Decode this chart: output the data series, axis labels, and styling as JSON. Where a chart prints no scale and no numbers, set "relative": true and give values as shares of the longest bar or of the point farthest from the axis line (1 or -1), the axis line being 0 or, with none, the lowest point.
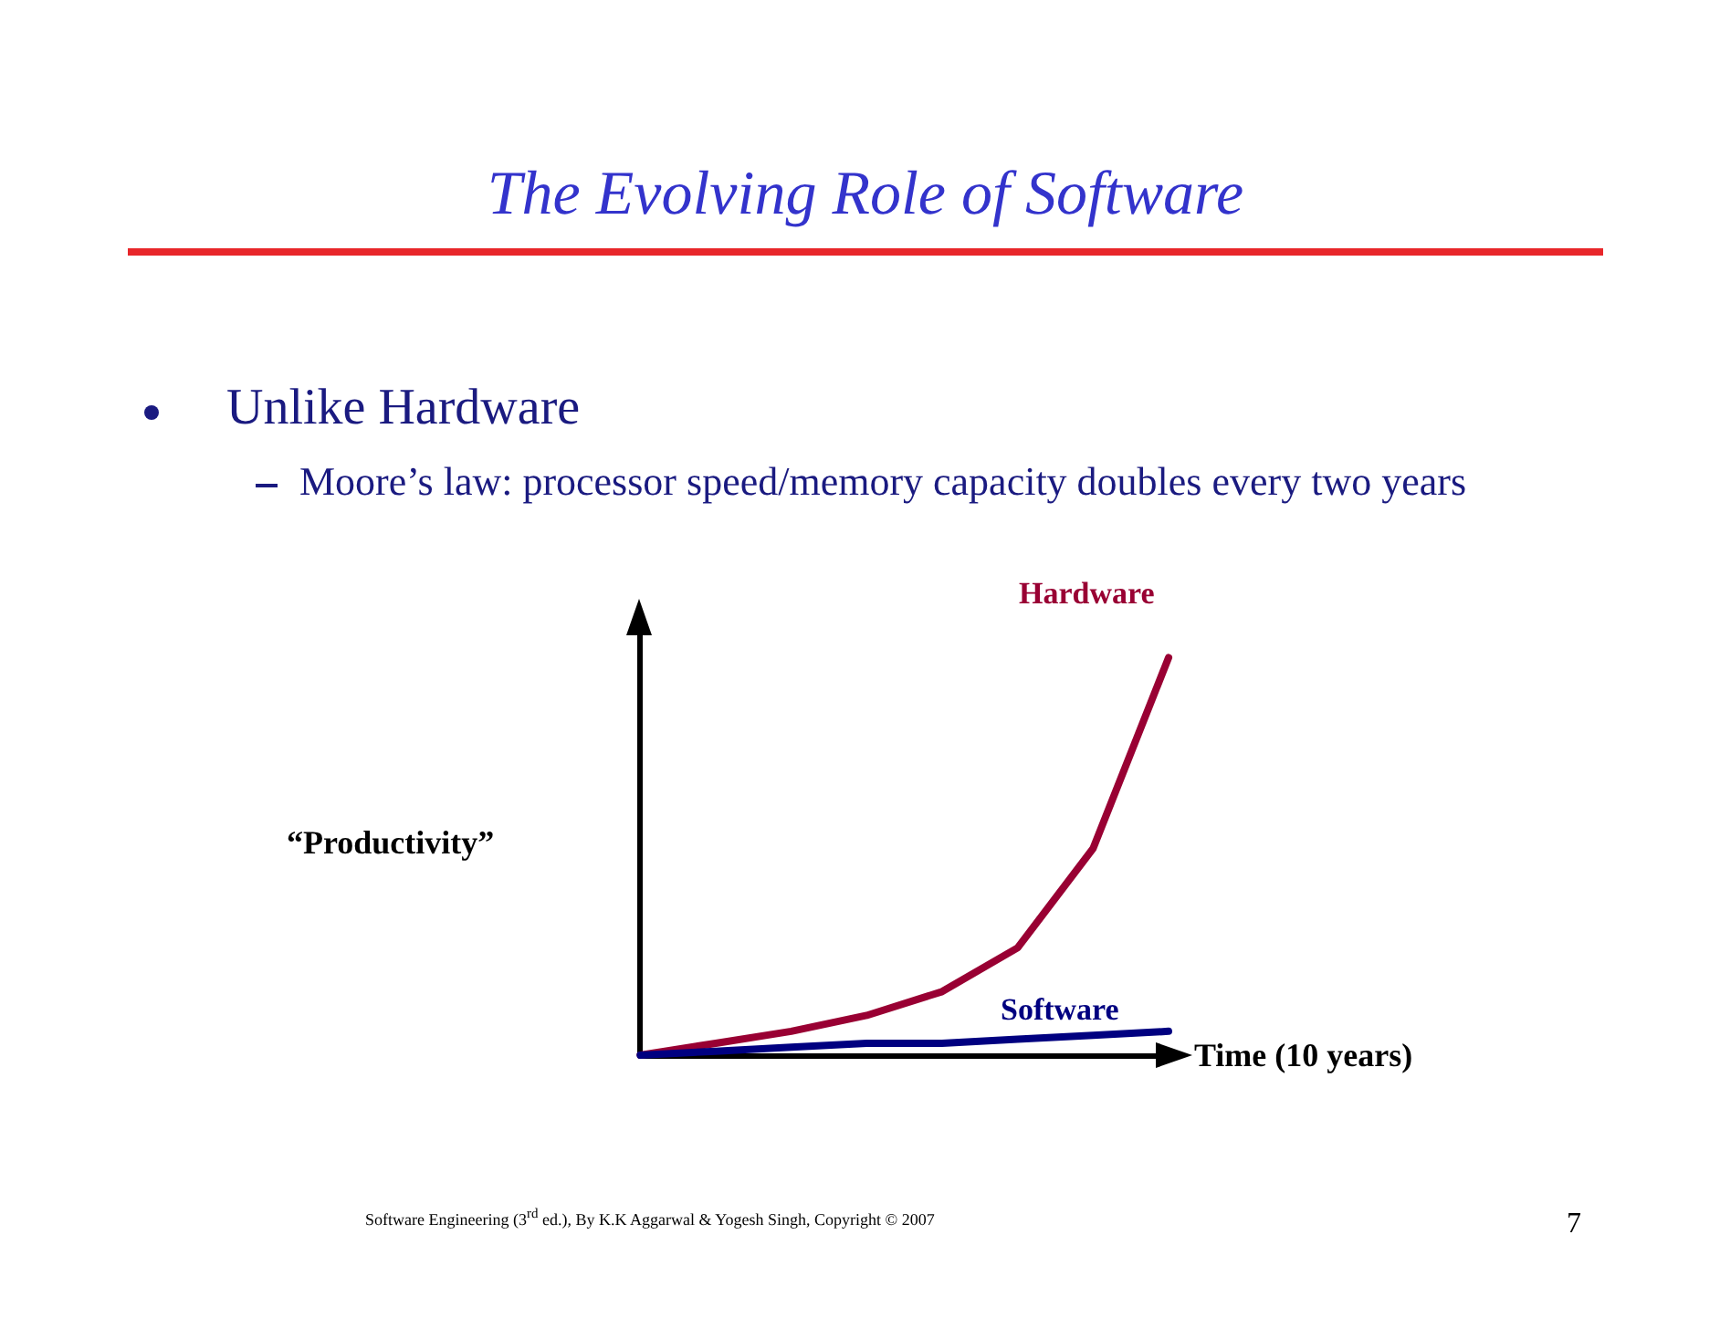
{
  "chart_data": {
    "type": "line",
    "title": "The Evolving Role of Software",
    "xlabel": "Time (10 years)",
    "ylabel": "“Productivity”",
    "relative": true,
    "categories": [
      null,
      null,
      null,
      null,
      null,
      null,
      null,
      null
    ],
    "series": [
      {
        "name": "Hardware",
        "color": "#990033",
        "values": [
          0,
          0.03,
          0.06,
          0.1,
          0.16,
          0.27,
          0.52,
          1
        ]
      },
      {
        "name": "Software",
        "color": "#000080",
        "values": [
          0,
          0.01,
          0.02,
          0.03,
          0.03,
          0.04,
          0.05,
          0.06
        ]
      }
    ],
    "annotations": [
      "Unlike Hardware",
      "Moore’s law: processor speed/memory capacity doubles every two years",
      "Software Engineering (3$^{rd}$ ed.), By K.K Aggarwal & Yogesh Singh, Copyright © 2007",
      "7"
    ],
    "grid": false,
    "legend": false,
    "marker": "none",
    "line_style": "solid"
  }
}
